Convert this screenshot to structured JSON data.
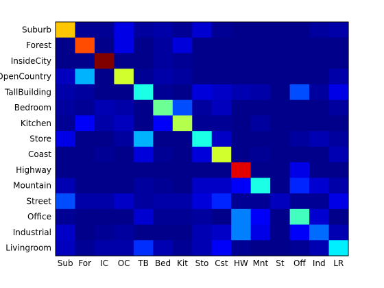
{
  "chart_data": {
    "type": "heatmap",
    "title": "",
    "xlabel": "",
    "ylabel": "",
    "row_labels": [
      "Suburb",
      "Forest",
      "InsideCity",
      "OpenCountry",
      "TallBuilding",
      "Bedroom",
      "Kitchen",
      "Store",
      "Coast",
      "Highway",
      "Mountain",
      "Street",
      "Office",
      "Industrial",
      "Livingroom"
    ],
    "col_labels": [
      "Sub",
      "For",
      "IC",
      "OC",
      "TB",
      "Bed",
      "Kit",
      "Sto",
      "Cst",
      "HW",
      "Mnt",
      "St",
      "Off",
      "Ind",
      "LR"
    ],
    "colormap": "jet",
    "value_range": [
      0,
      1
    ],
    "grid": false,
    "values": [
      [
        0.68,
        0.02,
        0.02,
        0.1,
        0.03,
        0.04,
        0.02,
        0.08,
        0.02,
        0.01,
        0.01,
        0.01,
        0.01,
        0.03,
        0.04
      ],
      [
        0.01,
        0.8,
        0.01,
        0.1,
        0.01,
        0.03,
        0.09,
        0.01,
        0.01,
        0.01,
        0.01,
        0.01,
        0.01,
        0.01,
        0.01
      ],
      [
        0.01,
        0.01,
        1.0,
        0.01,
        0.01,
        0.03,
        0.02,
        0.01,
        0.01,
        0.01,
        0.01,
        0.01,
        0.01,
        0.01,
        0.01
      ],
      [
        0.06,
        0.3,
        0.01,
        0.58,
        0.02,
        0.04,
        0.03,
        0.01,
        0.01,
        0.01,
        0.01,
        0.01,
        0.01,
        0.01,
        0.04
      ],
      [
        0.04,
        0.03,
        0.01,
        0.01,
        0.4,
        0.02,
        0.01,
        0.09,
        0.07,
        0.05,
        0.04,
        0.01,
        0.2,
        0.03,
        0.1
      ],
      [
        0.03,
        0.02,
        0.05,
        0.04,
        0.01,
        0.48,
        0.2,
        0.03,
        0.06,
        0.01,
        0.01,
        0.01,
        0.01,
        0.01,
        0.03
      ],
      [
        0.02,
        0.12,
        0.04,
        0.06,
        0.01,
        0.12,
        0.55,
        0.02,
        0.02,
        0.01,
        0.03,
        0.01,
        0.01,
        0.01,
        0.01
      ],
      [
        0.1,
        0.01,
        0.01,
        0.03,
        0.3,
        0.01,
        0.01,
        0.4,
        0.07,
        0.01,
        0.01,
        0.01,
        0.03,
        0.05,
        0.03
      ],
      [
        0.01,
        0.01,
        0.02,
        0.01,
        0.09,
        0.02,
        0.01,
        0.09,
        0.58,
        0.01,
        0.02,
        0.01,
        0.01,
        0.01,
        0.05
      ],
      [
        0.01,
        0.01,
        0.01,
        0.01,
        0.01,
        0.01,
        0.01,
        0.01,
        0.01,
        0.9,
        0.01,
        0.01,
        0.1,
        0.01,
        0.01
      ],
      [
        0.05,
        0.01,
        0.01,
        0.01,
        0.03,
        0.02,
        0.01,
        0.07,
        0.07,
        0.12,
        0.4,
        0.01,
        0.16,
        0.08,
        0.04
      ],
      [
        0.2,
        0.04,
        0.04,
        0.07,
        0.03,
        0.04,
        0.04,
        0.09,
        0.16,
        0.02,
        0.02,
        0.06,
        0.02,
        0.02,
        0.1
      ],
      [
        0.02,
        0.01,
        0.01,
        0.01,
        0.08,
        0.02,
        0.02,
        0.03,
        0.01,
        0.25,
        0.12,
        0.01,
        0.44,
        0.08,
        0.01
      ],
      [
        0.07,
        0.01,
        0.02,
        0.03,
        0.01,
        0.01,
        0.01,
        0.05,
        0.07,
        0.25,
        0.1,
        0.01,
        0.12,
        0.23,
        0.05
      ],
      [
        0.06,
        0.02,
        0.04,
        0.04,
        0.17,
        0.05,
        0.02,
        0.05,
        0.12,
        0.02,
        0.01,
        0.01,
        0.02,
        0.05,
        0.36
      ]
    ]
  }
}
